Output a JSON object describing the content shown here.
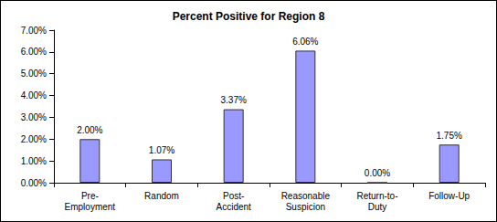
{
  "chart_data": {
    "type": "bar",
    "title": "Percent Positive for Region 8",
    "categories": [
      "Pre-Employment",
      "Random",
      "Post-Accident",
      "Reasonable Suspicion",
      "Return-to-Duty",
      "Follow-Up"
    ],
    "values": [
      2.0,
      1.07,
      3.37,
      6.06,
      0.0,
      1.75
    ],
    "value_labels": [
      "2.00%",
      "1.07%",
      "3.37%",
      "6.06%",
      "0.00%",
      "1.75%"
    ],
    "color": "#9999ff",
    "ylim": [
      0,
      7
    ],
    "yticks": [
      {
        "value": 0,
        "label": "0.00%"
      },
      {
        "value": 1,
        "label": "1.00%"
      },
      {
        "value": 2,
        "label": "2.00%"
      },
      {
        "value": 3,
        "label": "3.00%"
      },
      {
        "value": 4,
        "label": "4.00%"
      },
      {
        "value": 5,
        "label": "5.00%"
      },
      {
        "value": 6,
        "label": "6.00%"
      },
      {
        "value": 7,
        "label": "7.00%"
      }
    ],
    "grid": false,
    "data_labels": true
  }
}
